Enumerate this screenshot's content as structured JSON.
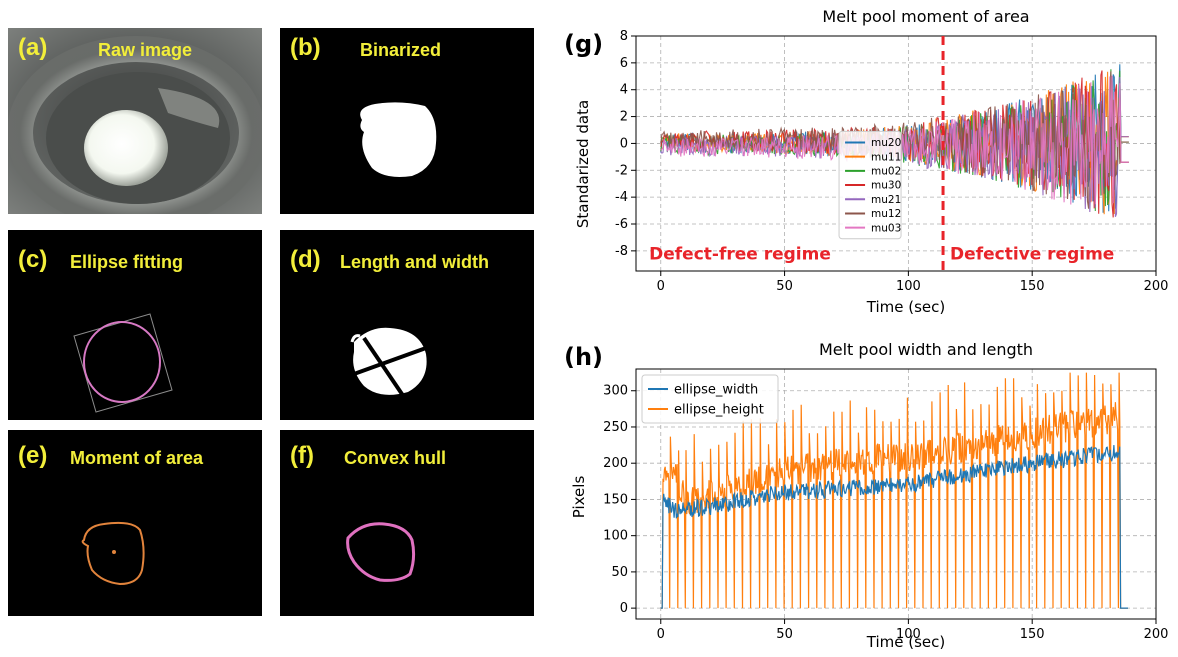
{
  "panels": {
    "a": {
      "letter": "(a)",
      "caption": "Raw image"
    },
    "b": {
      "letter": "(b)",
      "caption": "Binarized"
    },
    "c": {
      "letter": "(c)",
      "caption": "Ellipse fitting"
    },
    "d": {
      "letter": "(d)",
      "caption": "Length and width"
    },
    "e": {
      "letter": "(e)",
      "caption": "Moment of area"
    },
    "f": {
      "letter": "(f)",
      "caption": "Convex hull"
    }
  },
  "chart_data": [
    {
      "panel_label": "(g)",
      "type": "line",
      "title": "Melt pool moment of area",
      "xlabel": "Time (sec)",
      "ylabel": "Standarized data",
      "xlim": [
        -10,
        200
      ],
      "ylim": [
        -9.5,
        8
      ],
      "xticks": [
        0,
        50,
        100,
        150,
        200
      ],
      "yticks": [
        -8,
        -6,
        -4,
        -2,
        0,
        2,
        4,
        6,
        8
      ],
      "grid": true,
      "legend_position": "lower-center",
      "series": [
        {
          "name": "mu20",
          "color": "#1f77b4"
        },
        {
          "name": "mu11",
          "color": "#ff7f0e"
        },
        {
          "name": "mu02",
          "color": "#2ca02c"
        },
        {
          "name": "mu30",
          "color": "#d62728"
        },
        {
          "name": "mu21",
          "color": "#9467bd"
        },
        {
          "name": "mu12",
          "color": "#8c564b"
        },
        {
          "name": "mu03",
          "color": "#e377c2"
        }
      ],
      "time_span": [
        0,
        189
      ],
      "amplitude_by_time": [
        [
          0,
          0.7
        ],
        [
          40,
          0.8
        ],
        [
          80,
          1.0
        ],
        [
          100,
          1.4
        ],
        [
          115,
          2.0
        ],
        [
          140,
          3.0
        ],
        [
          160,
          4.2
        ],
        [
          180,
          5.5
        ],
        [
          186,
          6.5
        ]
      ],
      "annotations": [
        {
          "text": "Defect-free regime",
          "x": 32,
          "y": -8.2,
          "color": "#e8242a"
        },
        {
          "text": "Defective regime",
          "x": 150,
          "y": -8.2,
          "color": "#e8242a"
        }
      ],
      "vline": {
        "x": 114,
        "style": "dashed",
        "color": "#e8242a"
      }
    },
    {
      "panel_label": "(h)",
      "type": "line",
      "title": "Melt pool width and length",
      "xlabel": "Time (sec)",
      "ylabel": "Pixels",
      "xlim": [
        -10,
        200
      ],
      "ylim": [
        -15,
        330
      ],
      "xticks": [
        0,
        50,
        100,
        150,
        200
      ],
      "yticks": [
        0,
        50,
        100,
        150,
        200,
        250,
        300
      ],
      "grid": true,
      "legend_position": "upper-left",
      "series": [
        {
          "name": "ellipse_width",
          "color": "#1f77b4",
          "trend": [
            [
              1,
              150
            ],
            [
              5,
              135
            ],
            [
              20,
              140
            ],
            [
              50,
              160
            ],
            [
              100,
              170
            ],
            [
              150,
              200
            ],
            [
              185,
              215
            ]
          ]
        },
        {
          "name": "ellipse_height",
          "color": "#ff7f0e",
          "trend": [
            [
              1,
              195
            ],
            [
              5,
              190
            ],
            [
              10,
              150
            ],
            [
              25,
              160
            ],
            [
              50,
              190
            ],
            [
              100,
              210
            ],
            [
              150,
              240
            ],
            [
              185,
              265
            ]
          ],
          "spike_period": 3.3,
          "spike_max": 325
        }
      ],
      "time_span": [
        0,
        189
      ]
    }
  ]
}
